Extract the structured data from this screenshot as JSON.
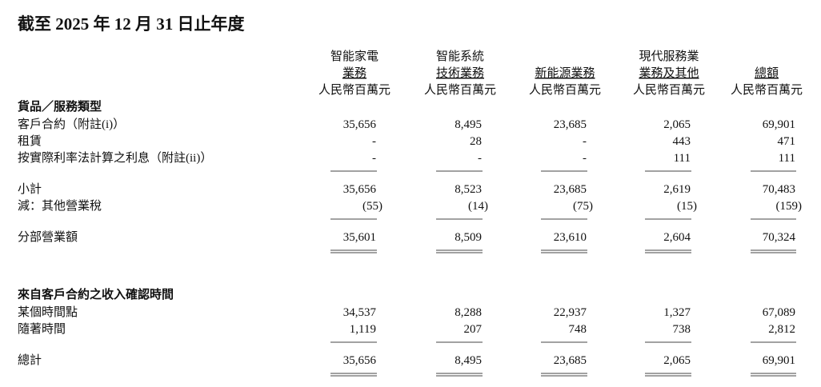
{
  "title": "截至 2025 年 12 月 31 日止年度",
  "columns": [
    {
      "lines": [
        "智能家電",
        "業務"
      ],
      "unit": "人民幣百萬元"
    },
    {
      "lines": [
        "智能系統",
        "技術業務"
      ],
      "unit": "人民幣百萬元"
    },
    {
      "lines": [
        "新能源業務"
      ],
      "unit": "人民幣百萬元"
    },
    {
      "lines": [
        "現代服務業",
        "業務及其他"
      ],
      "unit": "人民幣百萬元"
    },
    {
      "lines": [
        "總額"
      ],
      "unit": "人民幣百萬元"
    }
  ],
  "sections": [
    {
      "heading": "貨品／服務類型",
      "groups": [
        [
          {
            "label": "客戶合約（附註(i)）",
            "values": [
              "35,656",
              "8,495",
              "23,685",
              "2,065",
              "69,901"
            ]
          },
          {
            "label": "租賃",
            "values": [
              "-",
              "28",
              "-",
              "443",
              "471"
            ]
          },
          {
            "label": "按實際利率法計算之利息（附註(ii)）",
            "values": [
              "-",
              "-",
              "-",
              "111",
              "111"
            ]
          }
        ],
        [
          {
            "label": "小計",
            "values": [
              "35,656",
              "8,523",
              "23,685",
              "2,619",
              "70,483"
            ]
          },
          {
            "label": "減：其他營業稅",
            "values": [
              "(55)",
              "(14)",
              "(75)",
              "(15)",
              "(159)"
            ]
          }
        ],
        [
          {
            "label": "分部營業額",
            "values": [
              "35,601",
              "8,509",
              "23,610",
              "2,604",
              "70,324"
            ]
          }
        ]
      ]
    },
    {
      "heading": "來自客戶合約之收入確認時間",
      "groups": [
        [
          {
            "label": "某個時間點",
            "values": [
              "34,537",
              "8,288",
              "22,937",
              "1,327",
              "67,089"
            ]
          },
          {
            "label": "隨著時間",
            "values": [
              "1,119",
              "207",
              "748",
              "738",
              "2,812"
            ]
          }
        ],
        [
          {
            "label": "總計",
            "values": [
              "35,656",
              "8,495",
              "23,685",
              "2,065",
              "69,901"
            ]
          }
        ]
      ]
    }
  ]
}
